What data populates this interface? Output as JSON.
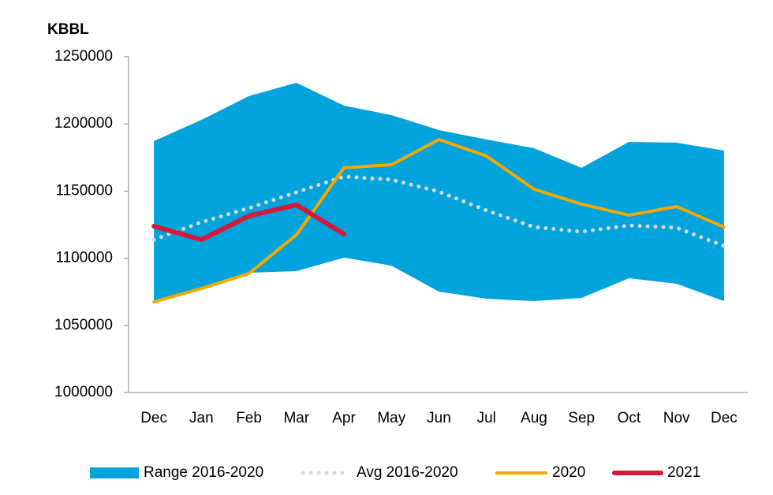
{
  "chart_data": {
    "type": "line",
    "y_axis_label": "KBBL",
    "categories": [
      "Dec",
      "Jan",
      "Feb",
      "Mar",
      "Apr",
      "May",
      "Jun",
      "Jul",
      "Aug",
      "Sep",
      "Oct",
      "Nov",
      "Dec"
    ],
    "range": {
      "name": "Range 2016-2020",
      "color": "#00a3dc",
      "low": [
        1067500,
        1078000,
        1089200,
        1090400,
        1100400,
        1094500,
        1075100,
        1069800,
        1068100,
        1070400,
        1085100,
        1081000,
        1068100
      ],
      "high": [
        1187200,
        1203000,
        1220700,
        1230600,
        1213600,
        1206600,
        1195400,
        1188400,
        1181900,
        1167300,
        1186600,
        1186000,
        1180200
      ]
    },
    "series": [
      {
        "name": "Avg 2016-2020",
        "color": "#d9d9d9",
        "style": "dotted",
        "values": [
          1113800,
          1126800,
          1137300,
          1149100,
          1160800,
          1158500,
          1149600,
          1135600,
          1123200,
          1119700,
          1124400,
          1122700,
          1109200
        ]
      },
      {
        "name": "2020",
        "color": "#f5a800",
        "style": "solid",
        "values": [
          1067500,
          1077500,
          1088600,
          1117400,
          1167300,
          1169600,
          1188400,
          1176100,
          1151400,
          1140300,
          1132000,
          1138500,
          1123200
        ]
      },
      {
        "name": "2021",
        "color": "#d6193b",
        "style": "thick",
        "values": [
          1123800,
          1113800,
          1131500,
          1139700,
          1118000,
          null,
          null,
          null,
          null,
          null,
          null,
          null,
          null
        ]
      }
    ],
    "ylim": [
      1000000,
      1250000
    ],
    "yticks": [
      1000000,
      1050000,
      1100000,
      1150000,
      1200000,
      1250000
    ],
    "grid": false
  }
}
